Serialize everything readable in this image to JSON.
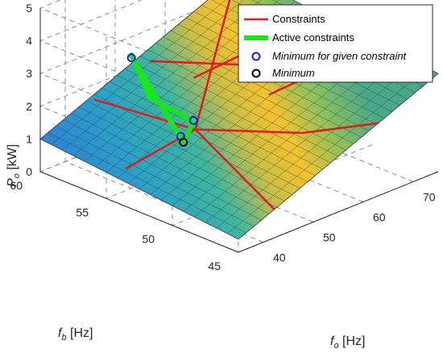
{
  "chart_data": {
    "type": "surface3d",
    "title": "",
    "xlabel": {
      "var": "f",
      "sub": "o",
      "unit": " [Hz]"
    },
    "ylabel": {
      "var": "f",
      "sub": "b",
      "unit": " [Hz]"
    },
    "zlabel": {
      "var": "P",
      "sub": "o",
      "unit": " [kW]"
    },
    "x_ticks": [
      40,
      50,
      60,
      70
    ],
    "y_ticks": [
      45,
      50,
      55,
      60
    ],
    "z_ticks": [
      0,
      1,
      2,
      3,
      4,
      5
    ],
    "xlim": [
      35,
      75
    ],
    "ylim": [
      45,
      60
    ],
    "zlim": [
      0,
      5
    ],
    "grid": true,
    "colormap": "parula",
    "legend": {
      "position": "top-right",
      "entries": [
        {
          "label": "Constraints",
          "kind": "line",
          "color": "#e31a1c"
        },
        {
          "label": "Active constraints",
          "kind": "thick-line",
          "color": "#19e619"
        },
        {
          "label": "Minimum for given constraint",
          "kind": "marker",
          "color": "#1a1ae6",
          "italic": true
        },
        {
          "label": "Minimum",
          "kind": "marker",
          "color": "#000000",
          "italic": true
        }
      ]
    },
    "surface_corners": [
      {
        "fo": 35,
        "fb": 60,
        "Po": 1.0
      },
      {
        "fo": 75,
        "fb": 60,
        "Po": 3.6
      },
      {
        "fo": 75,
        "fb": 45,
        "Po": 3.0
      },
      {
        "fo": 35,
        "fb": 45,
        "Po": 0.4
      }
    ],
    "active_constraints": [
      {
        "fo": 42.5,
        "fb": 52.0,
        "Po": 1.75
      },
      {
        "fo": 44.0,
        "fb": 56.5,
        "Po": 3.55
      },
      {
        "fo": 48.0,
        "fb": 58.0,
        "Po": 3.1
      },
      {
        "fo": 49.0,
        "fb": 57.0,
        "Po": 1.9
      },
      {
        "fo": 48.5,
        "fb": 53.5,
        "Po": 1.75
      },
      {
        "fo": 42.5,
        "fb": 52.0,
        "Po": 1.75
      }
    ],
    "minima_for_given_constraint": [
      {
        "fo": 42.5,
        "fb": 52.2,
        "Po": 1.9
      },
      {
        "fo": 44.0,
        "fb": 56.5,
        "Po": 3.5
      },
      {
        "fo": 48.5,
        "fb": 53.5,
        "Po": 1.8
      }
    ],
    "minimum": {
      "fo": 42.5,
      "fb": 52.0,
      "Po": 1.75
    }
  }
}
